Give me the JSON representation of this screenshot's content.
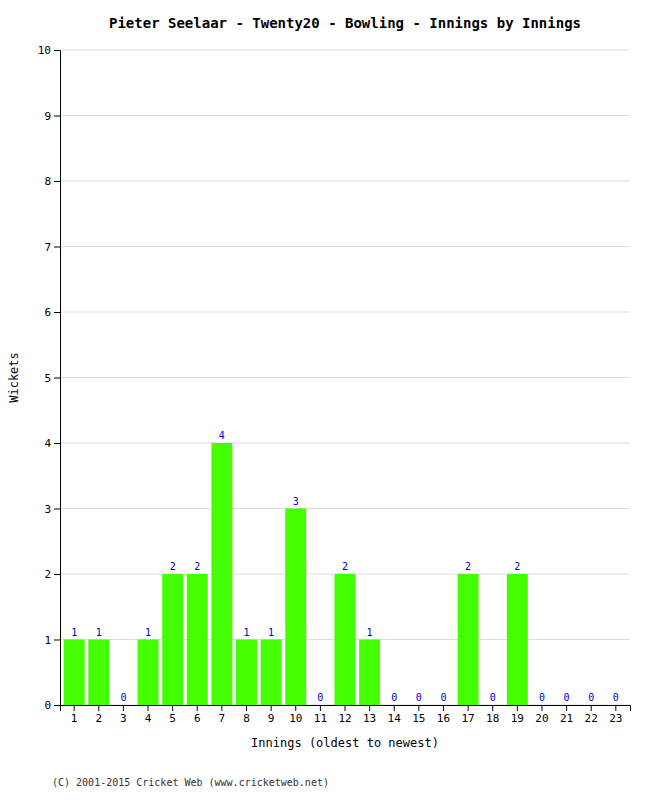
{
  "chart_data": {
    "type": "bar",
    "title": "Pieter Seelaar - Twenty20 - Bowling - Innings by Innings",
    "xlabel": "Innings (oldest to newest)",
    "ylabel": "Wickets",
    "categories": [
      "1",
      "2",
      "3",
      "4",
      "5",
      "6",
      "7",
      "8",
      "9",
      "10",
      "11",
      "12",
      "13",
      "14",
      "15",
      "16",
      "17",
      "18",
      "19",
      "20",
      "21",
      "22",
      "23"
    ],
    "values": [
      1,
      1,
      0,
      1,
      2,
      2,
      4,
      1,
      1,
      3,
      0,
      2,
      1,
      0,
      0,
      0,
      2,
      0,
      2,
      0,
      0,
      0,
      0
    ],
    "color": "#44ff00",
    "ylim": [
      0,
      10
    ],
    "yticks": [
      0,
      1,
      2,
      3,
      4,
      5,
      6,
      7,
      8,
      9,
      10
    ],
    "grid": true,
    "data_labels": true,
    "footer": "(C) 2001-2015 Cricket Web (www.cricketweb.net)"
  }
}
